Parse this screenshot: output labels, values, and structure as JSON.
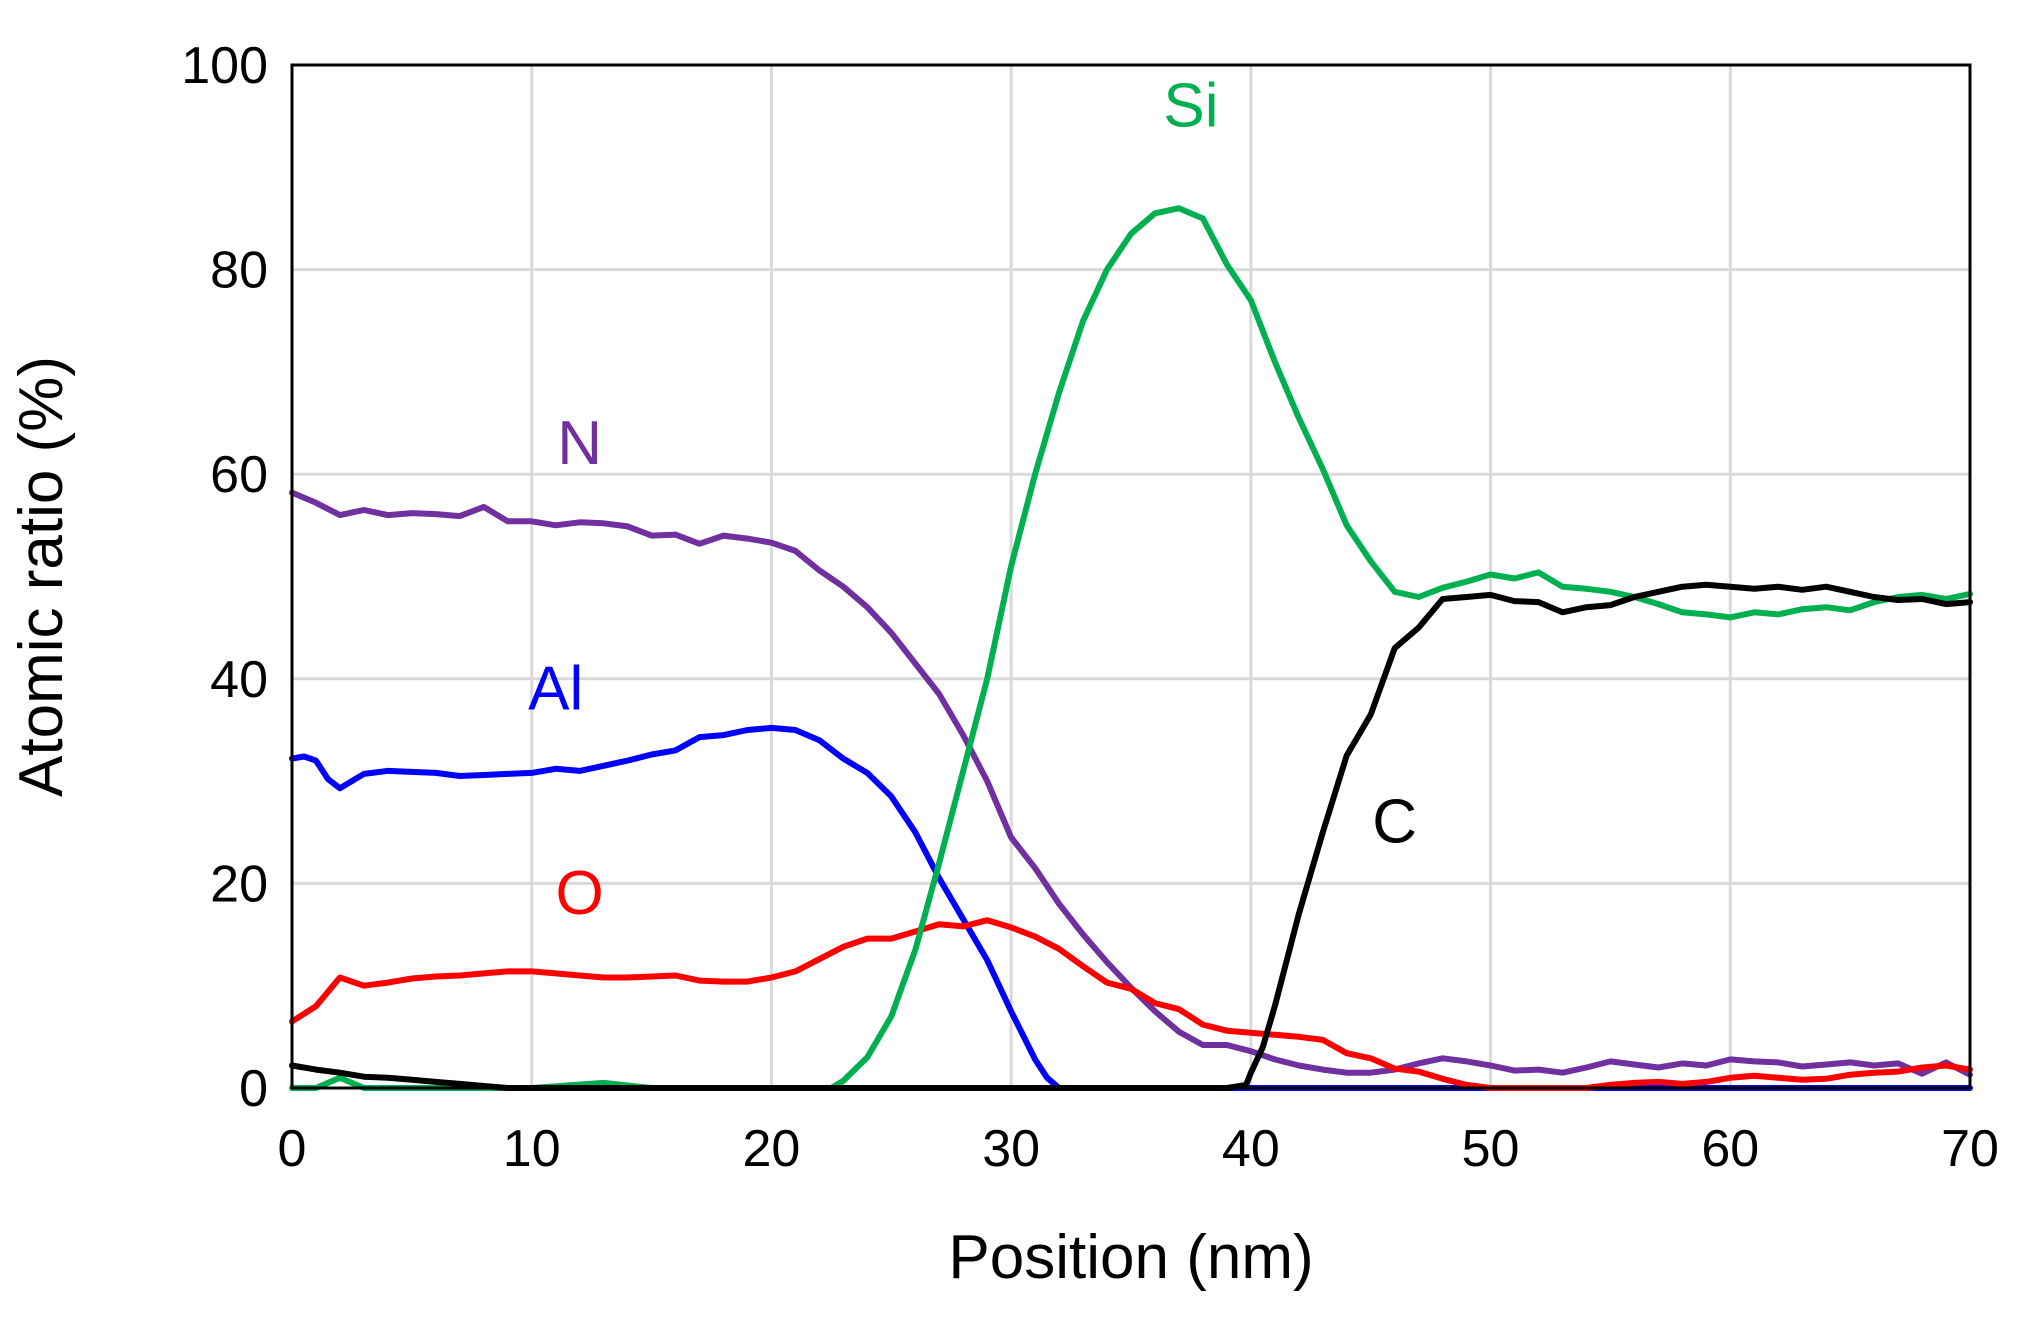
{
  "chart_data": {
    "type": "line",
    "title": "",
    "xlabel": "Position (nm)",
    "ylabel": "Atomic ratio (%)",
    "xlim": [
      0,
      70
    ],
    "ylim": [
      0,
      100
    ],
    "x_ticks": [
      0,
      10,
      20,
      30,
      40,
      50,
      60,
      70
    ],
    "y_ticks": [
      0,
      20,
      40,
      60,
      80,
      100
    ],
    "grid": true,
    "legend": "inline labels",
    "series": [
      {
        "name": "N",
        "label": "N",
        "color": "#7030a0",
        "label_pos": [
          12,
          61
        ],
        "x": [
          0,
          1,
          2,
          3,
          4,
          5,
          6,
          7,
          8,
          9,
          10,
          11,
          12,
          13,
          14,
          15,
          16,
          17,
          18,
          19,
          20,
          21,
          22,
          23,
          24,
          25,
          26,
          27,
          28,
          29,
          30,
          31,
          32,
          33,
          34,
          35,
          36,
          37,
          38,
          39,
          40,
          41,
          42,
          43,
          44,
          45,
          46,
          47,
          48,
          49,
          50,
          51,
          52,
          53,
          54,
          55,
          56,
          57,
          58,
          59,
          60,
          61,
          62,
          63,
          64,
          65,
          66,
          67,
          68,
          69,
          70
        ],
        "values": [
          58.2,
          57.2,
          56.0,
          56.5,
          56.0,
          56.2,
          56.1,
          55.9,
          56.8,
          55.4,
          55.4,
          55.0,
          55.3,
          55.2,
          54.9,
          54.0,
          54.1,
          53.2,
          54.0,
          53.7,
          53.3,
          52.5,
          50.6,
          49.0,
          47.0,
          44.5,
          41.5,
          38.5,
          34.5,
          30.0,
          24.5,
          21.5,
          18.0,
          15.0,
          12.3,
          9.8,
          7.5,
          5.5,
          4.2,
          4.2,
          3.6,
          2.8,
          2.2,
          1.8,
          1.5,
          1.5,
          1.8,
          2.4,
          2.9,
          2.6,
          2.2,
          1.7,
          1.8,
          1.5,
          2.0,
          2.6,
          2.3,
          2.0,
          2.4,
          2.2,
          2.8,
          2.6,
          2.5,
          2.1,
          2.3,
          2.5,
          2.2,
          2.4,
          1.4,
          2.5,
          1.3
        ]
      },
      {
        "name": "Al",
        "label": "Al",
        "color": "#0000ff",
        "label_pos": [
          11,
          37
        ],
        "x": [
          0,
          0.5,
          1,
          1.5,
          2,
          2.5,
          3,
          4,
          5,
          6,
          7,
          8,
          9,
          10,
          11,
          12,
          13,
          14,
          15,
          16,
          17,
          18,
          19,
          20,
          21,
          22,
          23,
          24,
          25,
          26,
          27,
          28,
          29,
          30,
          31,
          31.5,
          32,
          35,
          40,
          45,
          50,
          55,
          60,
          65,
          70
        ],
        "values": [
          32.2,
          32.4,
          32.0,
          30.2,
          29.3,
          30.0,
          30.7,
          31.0,
          30.9,
          30.8,
          30.5,
          30.6,
          30.7,
          30.8,
          31.2,
          31.0,
          31.5,
          32.0,
          32.6,
          33.0,
          34.3,
          34.5,
          35.0,
          35.2,
          35.0,
          34.0,
          32.2,
          30.8,
          28.5,
          25.0,
          20.5,
          16.5,
          12.5,
          7.5,
          2.8,
          1.0,
          0.0,
          0.0,
          0.0,
          0.0,
          0.0,
          0.0,
          0.0,
          0.0,
          0.0
        ]
      },
      {
        "name": "O",
        "label": "O",
        "color": "#ff0000",
        "label_pos": [
          12,
          17
        ],
        "x": [
          0,
          1,
          2,
          3,
          4,
          5,
          6,
          7,
          8,
          9,
          10,
          11,
          12,
          13,
          14,
          15,
          16,
          17,
          18,
          19,
          20,
          21,
          22,
          23,
          24,
          25,
          26,
          27,
          28,
          29,
          30,
          31,
          32,
          33,
          34,
          35,
          36,
          37,
          38,
          39,
          40,
          41,
          42,
          43,
          44,
          45,
          46,
          47,
          48,
          49,
          50,
          51,
          52,
          53,
          54,
          55,
          56,
          57,
          58,
          59,
          60,
          61,
          62,
          63,
          64,
          65,
          66,
          67,
          68,
          69,
          70
        ],
        "values": [
          6.5,
          8.0,
          10.8,
          10.0,
          10.3,
          10.7,
          10.9,
          11.0,
          11.2,
          11.4,
          11.4,
          11.2,
          11.0,
          10.8,
          10.8,
          10.9,
          11.0,
          10.5,
          10.4,
          10.4,
          10.8,
          11.4,
          12.6,
          13.8,
          14.6,
          14.6,
          15.3,
          16.0,
          15.8,
          16.4,
          15.7,
          14.8,
          13.6,
          11.9,
          10.3,
          9.7,
          8.3,
          7.7,
          6.2,
          5.6,
          5.4,
          5.2,
          5.0,
          4.7,
          3.4,
          2.9,
          1.9,
          1.6,
          0.9,
          0.3,
          0.0,
          0.0,
          0.0,
          0.0,
          0.0,
          0.3,
          0.5,
          0.6,
          0.4,
          0.6,
          1.0,
          1.2,
          1.0,
          0.8,
          0.9,
          1.3,
          1.5,
          1.6,
          2.0,
          2.2,
          1.8
        ]
      },
      {
        "name": "Si",
        "label": "Si",
        "color": "#00b050",
        "label_pos": [
          37.5,
          94
        ],
        "x": [
          0,
          1,
          2,
          3,
          5,
          10,
          13,
          15,
          20,
          22.5,
          23,
          24,
          25,
          26,
          27,
          28,
          29,
          30,
          31,
          32,
          33,
          34,
          35,
          36,
          37,
          38,
          39,
          40,
          41,
          42,
          43,
          44,
          45,
          46,
          47,
          48,
          49,
          50,
          51,
          52,
          53,
          54,
          55,
          56,
          57,
          58,
          59,
          60,
          61,
          62,
          63,
          64,
          65,
          66,
          67,
          68,
          69,
          70
        ],
        "values": [
          0.0,
          0.0,
          1.0,
          0.0,
          0.0,
          0.0,
          0.5,
          0.0,
          0.0,
          0.0,
          0.7,
          3.0,
          7.0,
          13.5,
          22.0,
          31.0,
          40.0,
          51.0,
          60.0,
          68.0,
          75.0,
          80.0,
          83.5,
          85.5,
          86.0,
          85.0,
          80.5,
          77.0,
          71.0,
          65.5,
          60.5,
          55.0,
          51.5,
          48.5,
          48.0,
          48.9,
          49.5,
          50.2,
          49.8,
          50.4,
          49.0,
          48.8,
          48.5,
          48.0,
          47.3,
          46.5,
          46.3,
          46.0,
          46.5,
          46.3,
          46.8,
          47.0,
          46.7,
          47.5,
          48.0,
          48.2,
          47.8,
          48.3
        ]
      },
      {
        "name": "C",
        "label": "C",
        "color": "#000000",
        "label_pos": [
          46,
          24
        ],
        "x": [
          0,
          1,
          2,
          3,
          4,
          5,
          6,
          7,
          8,
          9,
          10,
          20,
          30,
          39,
          39.8,
          40,
          40.5,
          41,
          42,
          43,
          44,
          45,
          46,
          47,
          48,
          49,
          50,
          51,
          52,
          53,
          54,
          55,
          56,
          57,
          58,
          59,
          60,
          61,
          62,
          63,
          64,
          65,
          66,
          67,
          68,
          69,
          70
        ],
        "values": [
          2.2,
          1.8,
          1.5,
          1.1,
          1.0,
          0.8,
          0.6,
          0.4,
          0.2,
          0.0,
          0.0,
          0.0,
          0.0,
          0.0,
          0.3,
          1.5,
          4.0,
          8.0,
          17.0,
          25.0,
          32.5,
          36.5,
          43.0,
          45.0,
          47.8,
          48.0,
          48.2,
          47.6,
          47.5,
          46.5,
          47.0,
          47.2,
          48.0,
          48.5,
          49.0,
          49.2,
          49.0,
          48.8,
          49.0,
          48.7,
          49.0,
          48.5,
          48.0,
          47.7,
          47.8,
          47.3,
          47.5
        ]
      }
    ]
  }
}
